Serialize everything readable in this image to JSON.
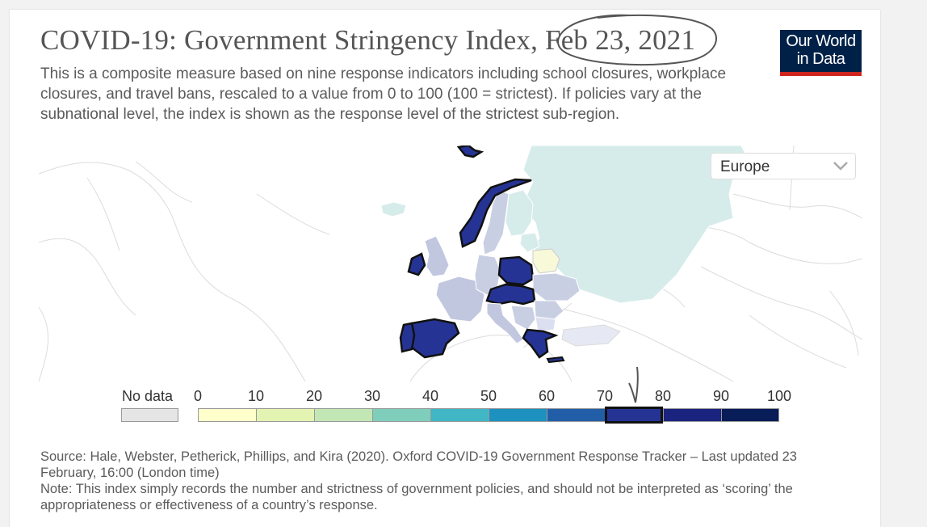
{
  "header": {
    "title": "COVID-19: Government Stringency Index, Feb 23, 2021",
    "subtitle": "This is a composite measure based on nine response indicators including school closures, workplace closures, and travel bans, rescaled to a value from 0 to 100 (100 = strictest). If policies vary at the subnational level, the index is shown as the response level of the strictest sub-region."
  },
  "logo": {
    "line1": "Our World",
    "line2": "in Data"
  },
  "region_selector": {
    "value": "Europe"
  },
  "legend": {
    "no_data_label": "No data",
    "ticks": [
      "0",
      "10",
      "20",
      "30",
      "40",
      "50",
      "60",
      "70",
      "80",
      "90",
      "100"
    ],
    "bin_colors": [
      "#ffffcc",
      "#e3f3b1",
      "#c2e6b4",
      "#7fcdbb",
      "#41b6c4",
      "#1d91c0",
      "#225ea8",
      "#253494",
      "#1a237e",
      "#081d58"
    ],
    "highlighted_bin": 7,
    "no_data_color": "#e5e5e5"
  },
  "colors": {
    "ocean": "#ffffff",
    "land_outline": "#dcdcdc",
    "brand": "#002147",
    "brand_accent": "#ce261e",
    "annotation": "#555555"
  },
  "map_data": {
    "scale_min": 0,
    "scale_max": 100,
    "highlighted_range": [
      70,
      80
    ],
    "countries": [
      {
        "name": "Spain",
        "bin": 7
      },
      {
        "name": "Portugal",
        "bin": 7
      },
      {
        "name": "Ireland",
        "bin": 7
      },
      {
        "name": "Norway",
        "bin": 7
      },
      {
        "name": "Poland",
        "bin": 7
      },
      {
        "name": "Czechia",
        "bin": 7
      },
      {
        "name": "Austria",
        "bin": 7
      },
      {
        "name": "Slovakia",
        "bin": 7
      },
      {
        "name": "Hungary",
        "bin": 7
      },
      {
        "name": "Greece",
        "bin": 7
      },
      {
        "name": "Svalbard",
        "bin": 7
      },
      {
        "name": "Russia",
        "bin": 2
      },
      {
        "name": "Finland",
        "bin": 2
      },
      {
        "name": "Iceland",
        "bin": 2
      },
      {
        "name": "Estonia",
        "bin": 2
      },
      {
        "name": "Belarus",
        "bin": 0
      },
      {
        "name": "Sweden",
        "bin": 3
      },
      {
        "name": "Ukraine",
        "bin": 3
      },
      {
        "name": "Romania",
        "bin": 3
      },
      {
        "name": "United Kingdom",
        "bin": 4
      },
      {
        "name": "France",
        "bin": 4
      },
      {
        "name": "Germany",
        "bin": 4
      },
      {
        "name": "Italy",
        "bin": 4
      },
      {
        "name": "Balkans",
        "bin": 4
      },
      {
        "name": "Turkey",
        "bin": 3
      }
    ]
  },
  "source": {
    "line1": "Source: Hale, Webster, Petherick, Phillips, and Kira (2020). Oxford COVID-19 Government Response Tracker – Last updated 23 February, 16:00 (London time)",
    "line2": "Note: This index simply records the number and strictness of government policies, and should not be interpreted as ‘scoring’ the appropriateness or effectiveness of a country’s response."
  }
}
